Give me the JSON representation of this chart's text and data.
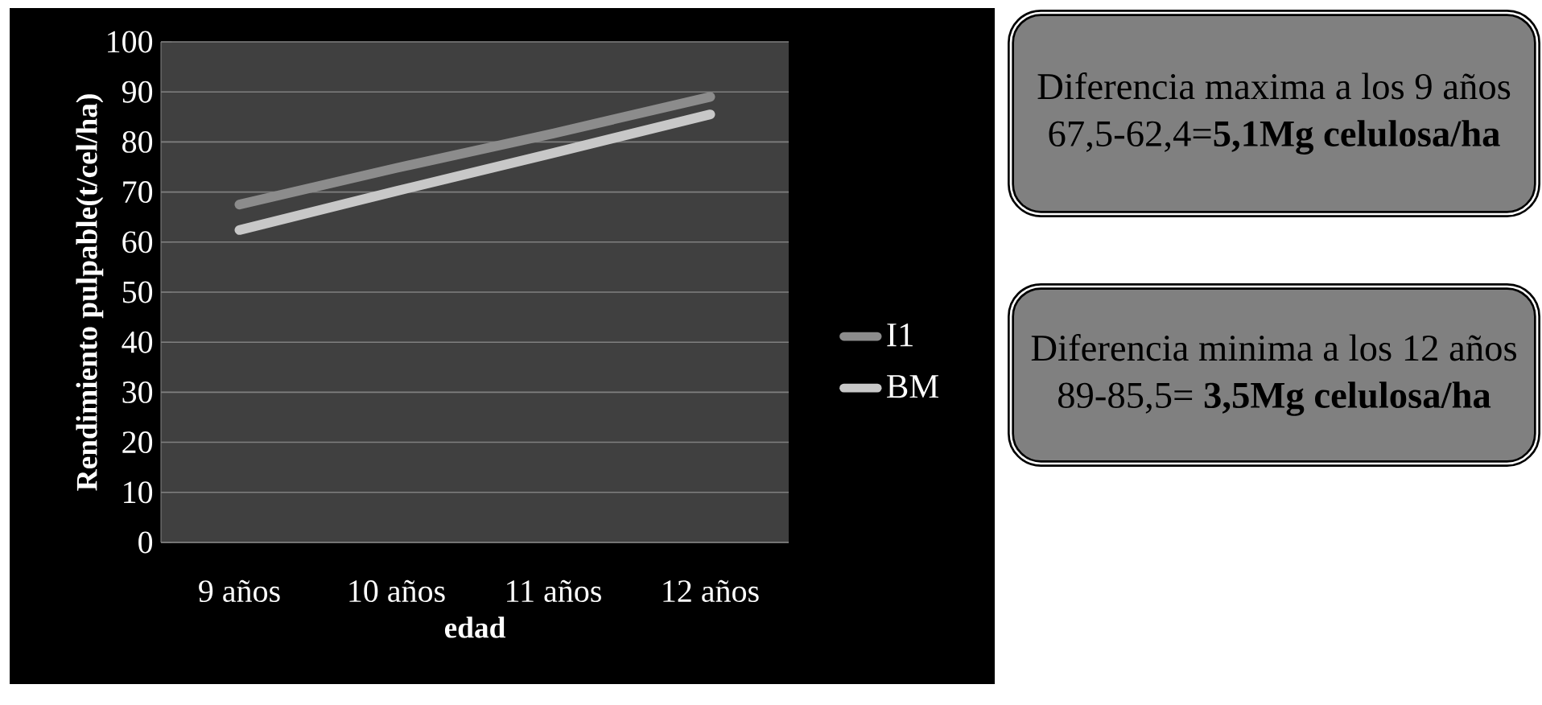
{
  "chart_data": {
    "type": "line",
    "categories": [
      "9 años",
      "10 años",
      "11 años",
      "12 años"
    ],
    "series": [
      {
        "name": "I1",
        "color": "#8c8c8c",
        "values": [
          67.5,
          74.8,
          81.7,
          89
        ]
      },
      {
        "name": "BM",
        "color": "#c8c8c8",
        "values": [
          62.4,
          70.2,
          77.8,
          85.5
        ]
      }
    ],
    "xlabel": "edad",
    "ylabel": "Rendimiento pulpable(t/cel/ha)",
    "ylim": [
      0,
      100
    ],
    "yticks": [
      0,
      10,
      20,
      30,
      40,
      50,
      60,
      70,
      80,
      90,
      100
    ],
    "grid": "y",
    "legend": "right",
    "annotations": [
      "Diferencia maxima a los 9 años",
      "67,5-62,4=**5,1Mg celulosa/ha**",
      "Diferencia minima a los 12 años",
      "89-85,5= **3,5Mg celulosa/ha**"
    ]
  }
}
